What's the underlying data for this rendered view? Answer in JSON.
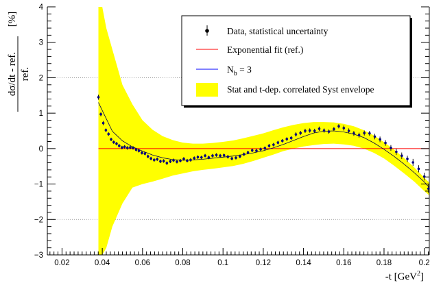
{
  "chart_data": {
    "type": "scatter",
    "xlabel": "-t [GeV",
    "xlabel_sup": "2",
    "xlabel_close": "]",
    "ylabel_numerator": "dσ/dt - ref.",
    "ylabel_denominator": "ref.",
    "ylabel_unit": "[%]",
    "xlim": [
      0.0127,
      0.2025
    ],
    "ylim": [
      -3,
      4
    ],
    "x_ticks": [
      "0.02",
      "0.04",
      "0.06",
      "0.08",
      "0.1",
      "0.12",
      "0.14",
      "0.16",
      "0.18",
      "0.2"
    ],
    "y_ticks": [
      "−3",
      "−2",
      "−1",
      "0",
      "1",
      "2",
      "3",
      "4"
    ],
    "grid": "dotted horizontal lines at -2, 2",
    "legend_position": "top-right",
    "legend": [
      {
        "marker": "point-with-errorbar",
        "label": "Data, statistical uncertainty"
      },
      {
        "marker": "line-red",
        "label": "Exponential fit (ref.)"
      },
      {
        "marker": "line-blue",
        "label_main": "N",
        "label_sub": "b",
        "label_rest": " = 3"
      },
      {
        "marker": "filled-yellow-box",
        "label": "Stat and t-dep. correlated Syst envelope"
      }
    ],
    "colors": {
      "data": "#000000",
      "fit": "#ff0000",
      "nb3": "#0000ff",
      "envelope": "#ffff00",
      "data_marker": "#000080"
    },
    "series": [
      {
        "name": "Data, statistical uncertainty",
        "x": [
          0.0381,
          0.0393,
          0.0405,
          0.0418,
          0.0431,
          0.0444,
          0.0457,
          0.0471,
          0.0484,
          0.0498,
          0.0511,
          0.0525,
          0.0539,
          0.0553,
          0.0568,
          0.0582,
          0.0597,
          0.0612,
          0.0627,
          0.0642,
          0.0658,
          0.0673,
          0.0689,
          0.0705,
          0.0721,
          0.0738,
          0.0754,
          0.0771,
          0.0788,
          0.0805,
          0.0822,
          0.0839,
          0.0857,
          0.0875,
          0.0893,
          0.0911,
          0.0929,
          0.0948,
          0.0967,
          0.0986,
          0.1005,
          0.1024,
          0.1044,
          0.1064,
          0.1084,
          0.1104,
          0.1124,
          0.1145,
          0.1166,
          0.1187,
          0.1208,
          0.1229,
          0.1251,
          0.1273,
          0.1295,
          0.1317,
          0.1339,
          0.1362,
          0.1385,
          0.1408,
          0.1431,
          0.1455,
          0.1478,
          0.1502,
          0.1526,
          0.1551,
          0.1575,
          0.16,
          0.1625,
          0.165,
          0.1676,
          0.1702,
          0.1728,
          0.1754,
          0.178,
          0.1807,
          0.1834,
          0.1861,
          0.1888,
          0.1916,
          0.1944,
          0.1972,
          0.2,
          0.2021
        ],
        "y": [
          1.45,
          0.97,
          0.72,
          0.52,
          0.41,
          0.26,
          0.18,
          0.14,
          0.08,
          0.03,
          0.05,
          0.02,
          0.03,
          0.02,
          -0.03,
          -0.06,
          -0.12,
          -0.14,
          -0.22,
          -0.28,
          -0.32,
          -0.3,
          -0.36,
          -0.35,
          -0.41,
          -0.36,
          -0.33,
          -0.37,
          -0.34,
          -0.29,
          -0.34,
          -0.32,
          -0.27,
          -0.24,
          -0.25,
          -0.2,
          -0.25,
          -0.2,
          -0.18,
          -0.2,
          -0.19,
          -0.23,
          -0.28,
          -0.26,
          -0.22,
          -0.16,
          -0.11,
          -0.05,
          -0.06,
          -0.02,
          0.01,
          0.08,
          0.11,
          0.17,
          0.22,
          0.27,
          0.3,
          0.4,
          0.44,
          0.5,
          0.51,
          0.5,
          0.56,
          0.51,
          0.48,
          0.55,
          0.63,
          0.58,
          0.5,
          0.43,
          0.38,
          0.44,
          0.43,
          0.34,
          0.26,
          0.16,
          0.02,
          -0.09,
          -0.2,
          -0.29,
          -0.39,
          -0.57,
          -0.79,
          -1.13
        ],
        "err": [
          0.07,
          0.06,
          0.06,
          0.05,
          0.05,
          0.05,
          0.05,
          0.05,
          0.05,
          0.05,
          0.05,
          0.05,
          0.05,
          0.05,
          0.05,
          0.05,
          0.05,
          0.05,
          0.05,
          0.05,
          0.05,
          0.05,
          0.05,
          0.05,
          0.05,
          0.05,
          0.05,
          0.05,
          0.05,
          0.05,
          0.05,
          0.05,
          0.05,
          0.05,
          0.05,
          0.05,
          0.05,
          0.05,
          0.05,
          0.05,
          0.05,
          0.05,
          0.05,
          0.05,
          0.05,
          0.05,
          0.05,
          0.05,
          0.05,
          0.05,
          0.05,
          0.05,
          0.05,
          0.05,
          0.05,
          0.05,
          0.05,
          0.06,
          0.06,
          0.06,
          0.06,
          0.06,
          0.06,
          0.06,
          0.06,
          0.06,
          0.06,
          0.07,
          0.07,
          0.07,
          0.07,
          0.07,
          0.07,
          0.08,
          0.08,
          0.08,
          0.08,
          0.09,
          0.09,
          0.09,
          0.1,
          0.1,
          0.11,
          0.12
        ]
      },
      {
        "name": "Exponential fit (ref.)",
        "x": [
          0.0381,
          0.2025
        ],
        "y": [
          0,
          0
        ]
      },
      {
        "label_main": "N",
        "label_sub": "b",
        "label_rest": " = 3",
        "x": [
          0.0381,
          0.045,
          0.05,
          0.055,
          0.06,
          0.065,
          0.07,
          0.075,
          0.08,
          0.085,
          0.09,
          0.095,
          0.1,
          0.105,
          0.11,
          0.115,
          0.12,
          0.125,
          0.13,
          0.135,
          0.14,
          0.145,
          0.15,
          0.155,
          0.16,
          0.165,
          0.17,
          0.175,
          0.18,
          0.185,
          0.19,
          0.195,
          0.2,
          0.2025
        ],
        "y": [
          1.3,
          0.49,
          0.22,
          0.05,
          -0.07,
          -0.18,
          -0.26,
          -0.31,
          -0.33,
          -0.32,
          -0.3,
          -0.27,
          -0.24,
          -0.21,
          -0.17,
          -0.12,
          -0.06,
          0.02,
          0.12,
          0.23,
          0.34,
          0.44,
          0.49,
          0.5,
          0.47,
          0.41,
          0.31,
          0.16,
          -0.02,
          -0.22,
          -0.44,
          -0.68,
          -0.94,
          -1.1
        ]
      },
      {
        "name": "Stat and t-dep. correlated Syst envelope",
        "x": [
          0.0381,
          0.04,
          0.042,
          0.045,
          0.05,
          0.055,
          0.06,
          0.065,
          0.07,
          0.075,
          0.08,
          0.085,
          0.09,
          0.095,
          0.1,
          0.105,
          0.11,
          0.115,
          0.12,
          0.125,
          0.13,
          0.135,
          0.14,
          0.145,
          0.15,
          0.155,
          0.16,
          0.165,
          0.17,
          0.175,
          0.18,
          0.185,
          0.19,
          0.195,
          0.2,
          0.2025
        ],
        "upper": [
          4.0,
          4.0,
          3.4,
          2.8,
          1.8,
          1.25,
          0.8,
          0.53,
          0.35,
          0.24,
          0.17,
          0.14,
          0.14,
          0.16,
          0.19,
          0.23,
          0.29,
          0.36,
          0.43,
          0.52,
          0.6,
          0.67,
          0.72,
          0.75,
          0.75,
          0.74,
          0.7,
          0.63,
          0.52,
          0.37,
          0.18,
          -0.03,
          -0.27,
          -0.53,
          -0.82,
          -0.96
        ],
        "lower": [
          -3.0,
          -3.0,
          -2.8,
          -2.2,
          -1.55,
          -1.1,
          -1.0,
          -0.93,
          -0.85,
          -0.76,
          -0.7,
          -0.64,
          -0.6,
          -0.57,
          -0.53,
          -0.49,
          -0.43,
          -0.35,
          -0.26,
          -0.17,
          -0.07,
          0.0,
          0.06,
          0.1,
          0.13,
          0.14,
          0.12,
          0.08,
          0.0,
          -0.12,
          -0.28,
          -0.48,
          -0.7,
          -0.93,
          -1.2,
          -1.32
        ]
      }
    ]
  }
}
